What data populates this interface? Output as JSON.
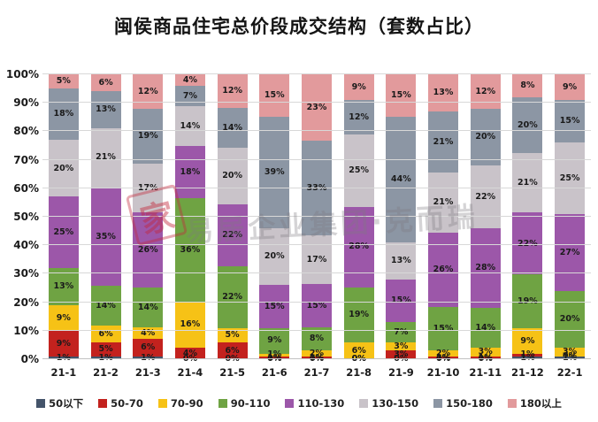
{
  "title": "闽侯商品住宅总价段成交结构（套数占比）",
  "watermark": {
    "line": "易居企业集团·克而瑞",
    "stamp": "家"
  },
  "chart_data": {
    "type": "bar",
    "stacked": true,
    "percent_stacked": true,
    "title": "闽侯商品住宅总价段成交结构（套数占比）",
    "xlabel": "",
    "ylabel": "",
    "ylim": [
      0,
      100
    ],
    "grid": true,
    "legend_position": "bottom",
    "yticks": [
      "0%",
      "10%",
      "20%",
      "30%",
      "40%",
      "50%",
      "60%",
      "70%",
      "80%",
      "90%",
      "100%"
    ],
    "categories": [
      "21-1",
      "21-2",
      "21-3",
      "21-4",
      "21-5",
      "21-6",
      "21-7",
      "21-8",
      "21-9",
      "21-10",
      "21-11",
      "21-12",
      "22-1"
    ],
    "series": [
      {
        "name": "50以下",
        "color": "#44546a",
        "values": [
          1,
          1,
          1,
          0,
          0,
          0,
          0,
          0,
          0,
          0,
          0,
          1,
          1
        ]
      },
      {
        "name": "50-70",
        "color": "#c3221e",
        "values": [
          9,
          5,
          6,
          4,
          6,
          1,
          1,
          0,
          3,
          1,
          1,
          1,
          0
        ]
      },
      {
        "name": "70-90",
        "color": "#f6c216",
        "values": [
          9,
          6,
          4,
          16,
          5,
          1,
          2,
          6,
          3,
          2,
          3,
          9,
          3
        ]
      },
      {
        "name": "90-110",
        "color": "#6fa343",
        "values": [
          13,
          14,
          14,
          36,
          22,
          9,
          8,
          19,
          7,
          15,
          14,
          19,
          20
        ]
      },
      {
        "name": "110-130",
        "color": "#9c57a9",
        "values": [
          25,
          35,
          26,
          18,
          22,
          15,
          15,
          28,
          15,
          26,
          28,
          22,
          27
        ]
      },
      {
        "name": "130-150",
        "color": "#c9c3c9",
        "values": [
          20,
          21,
          17,
          14,
          20,
          20,
          17,
          25,
          13,
          21,
          22,
          21,
          25
        ]
      },
      {
        "name": "150-180",
        "color": "#8c96a4",
        "values": [
          18,
          13,
          19,
          7,
          14,
          39,
          33,
          12,
          44,
          21,
          20,
          20,
          15
        ]
      },
      {
        "name": "180以上",
        "color": "#e29a9c",
        "values": [
          5,
          6,
          12,
          4,
          12,
          15,
          23,
          9,
          15,
          13,
          12,
          8,
          9
        ]
      }
    ]
  }
}
